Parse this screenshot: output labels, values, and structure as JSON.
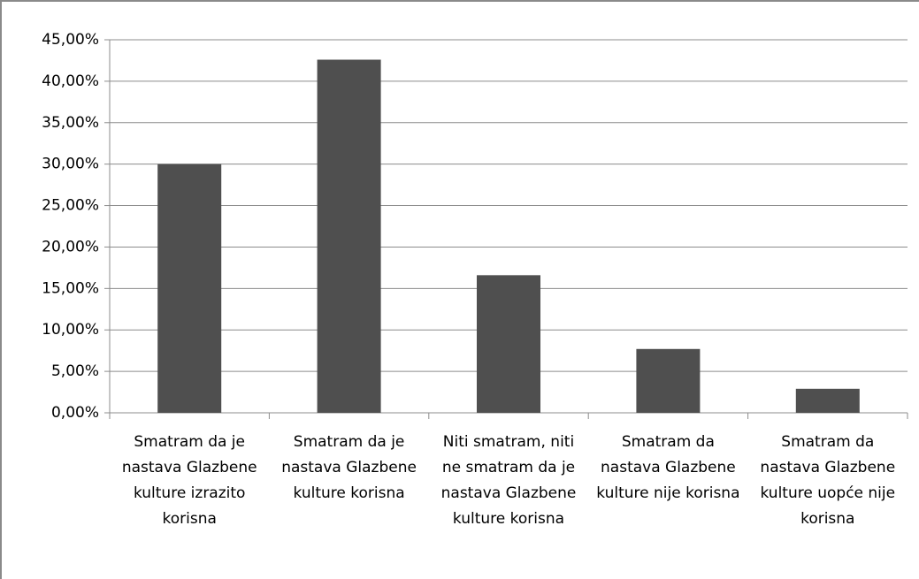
{
  "chart_data": {
    "type": "bar",
    "categories": [
      "Smatram da je nastava Glazbene kulture izrazito korisna",
      "Smatram da je nastava Glazbene kulture korisna",
      "Niti smatram, niti ne smatram da je nastava Glazbene kulture korisna",
      "Smatram da nastava Glazbene kulture nije korisna",
      "Smatram da nastava Glazbene kulture uopće nije korisna"
    ],
    "values": [
      30.0,
      42.6,
      16.6,
      7.7,
      2.9
    ],
    "color": "#4f4f4f",
    "ylim": [
      0,
      45
    ],
    "yticks": [
      {
        "value": 0,
        "label": "0,00%"
      },
      {
        "value": 5,
        "label": "5,00%"
      },
      {
        "value": 10,
        "label": "10,00%"
      },
      {
        "value": 15,
        "label": "15,00%"
      },
      {
        "value": 20,
        "label": "20,00%"
      },
      {
        "value": 25,
        "label": "25,00%"
      },
      {
        "value": 30,
        "label": "30,00%"
      },
      {
        "value": 35,
        "label": "35,00%"
      },
      {
        "value": 40,
        "label": "40,00%"
      },
      {
        "value": 45,
        "label": "45,00%"
      }
    ],
    "grid": true
  }
}
